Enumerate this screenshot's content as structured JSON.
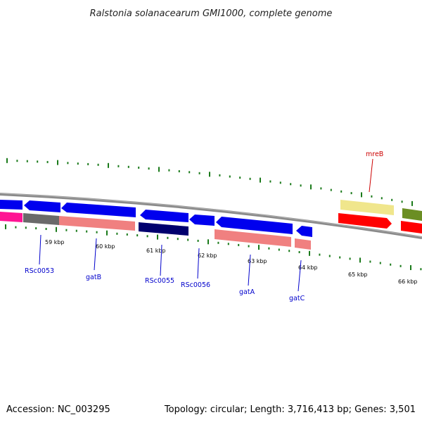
{
  "title": "Ralstonia solanacearum GMI1000, complete genome",
  "footer": {
    "accession": "Accession: NC_003295",
    "summary": "Topology: circular; Length: 3,716,413 bp; Genes: 3,501"
  },
  "ruler": [
    {
      "label": "59 kbp"
    },
    {
      "label": "60 kbp"
    },
    {
      "label": "61 kbp"
    },
    {
      "label": "62 kbp"
    },
    {
      "label": "63 kbp"
    },
    {
      "label": "64 kbp"
    },
    {
      "label": "65 kbp"
    },
    {
      "label": "66 kbp"
    }
  ],
  "genes": [
    {
      "label": "RSc0053",
      "color": "#0000cc"
    },
    {
      "label": "gatB",
      "color": "#0000cc"
    },
    {
      "label": "RSc0055",
      "color": "#0000cc"
    },
    {
      "label": "RSc0056",
      "color": "#0000cc"
    },
    {
      "label": "gatA",
      "color": "#0000cc"
    },
    {
      "label": "gatC",
      "color": "#0000cc"
    },
    {
      "label": "mreB",
      "color": "#cc0000"
    }
  ],
  "colors": {
    "backbone": "#7a7a7a",
    "tick": "#1a7a1a",
    "cds_blue": "#0000ee",
    "cds_navy": "#00006e",
    "rna_salmon": "#f08080",
    "magenta": "#ff1493",
    "gray": "#666666",
    "red": "#ff0000",
    "khaki": "#f0e68c",
    "olive": "#6b8e23"
  }
}
